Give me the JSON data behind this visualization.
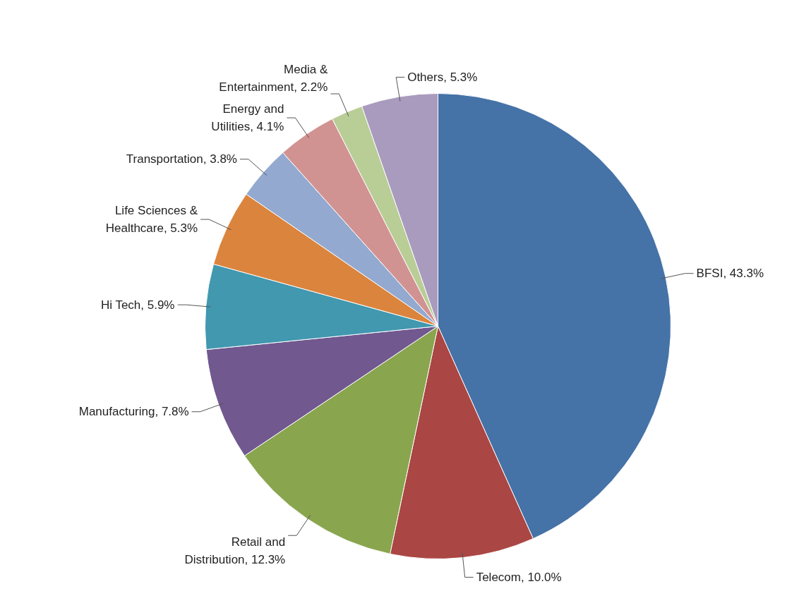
{
  "chart_data": {
    "type": "pie",
    "categories": [
      "BFSI",
      "Telecom",
      "Retail and Distribution",
      "Manufacturing",
      "Hi Tech",
      "Life Sciences & Healthcare",
      "Transportation",
      "Energy and Utilities",
      "Media & Entertainment",
      "Others"
    ],
    "values": [
      43.3,
      10.0,
      12.3,
      7.8,
      5.9,
      5.3,
      3.8,
      4.1,
      2.2,
      5.3
    ],
    "value_labels": [
      "43.3%",
      "10.0%",
      "12.3%",
      "7.8%",
      "5.9%",
      "5.3%",
      "3.8%",
      "4.1%",
      "2.2%",
      "5.3%"
    ],
    "colors": [
      "#4572a7",
      "#aa4643",
      "#89a54e",
      "#71588f",
      "#4198af",
      "#db843d",
      "#93a9cf",
      "#d19392",
      "#b9cd96",
      "#a99bbd"
    ],
    "legend": false
  }
}
